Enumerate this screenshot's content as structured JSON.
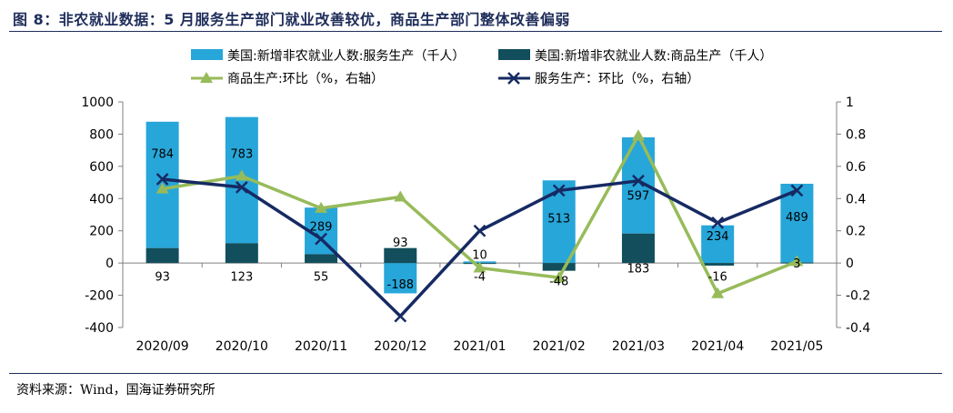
{
  "title": "图 8：非农就业数据：5 月服务生产部门就业改善较优，商品生产部门整体改善偏弱",
  "source": "资料来源：Wind，国海证券研究所",
  "colors": {
    "services_bar": "#27a6d9",
    "goods_bar": "#124e5c",
    "goods_line": "#97bb5a",
    "services_line": "#162a63",
    "title": "#1f2d5a"
  },
  "chart_data": {
    "type": "bar",
    "categories": [
      "2020/09",
      "2020/10",
      "2020/11",
      "2020/12",
      "2021/01",
      "2021/02",
      "2021/03",
      "2021/04",
      "2021/05"
    ],
    "series": [
      {
        "name": "美国:新增非农就业人数:服务生产（千人）",
        "kind": "bar",
        "axis": "left",
        "values": [
          784,
          783,
          289,
          -188,
          10,
          513,
          597,
          234,
          489
        ]
      },
      {
        "name": "美国:新增非农就业人数:商品生产（千人）",
        "kind": "bar",
        "axis": "left",
        "values": [
          93,
          123,
          55,
          93,
          -4,
          -48,
          183,
          -16,
          3
        ]
      },
      {
        "name": "商品生产:环比（%，右轴）",
        "kind": "line",
        "axis": "right",
        "marker": "triangle",
        "values": [
          0.46,
          0.54,
          0.34,
          0.41,
          -0.03,
          -0.09,
          0.79,
          -0.19,
          0.01
        ]
      },
      {
        "name": "服务生产：环比（%，右轴）",
        "kind": "line",
        "axis": "right",
        "marker": "x",
        "values": [
          0.52,
          0.47,
          0.15,
          -0.33,
          0.2,
          0.45,
          0.51,
          0.25,
          0.45
        ]
      }
    ],
    "ylim_left": [
      -400,
      1000
    ],
    "yticks_left": [
      "1000",
      "800",
      "600",
      "400",
      "200",
      "0",
      "-200",
      "-400"
    ],
    "ylim_right": [
      -0.4,
      1
    ],
    "yticks_right": [
      "1",
      "0.8",
      "0.6",
      "0.4",
      "0.2",
      "0",
      "-0.2",
      "-0.4"
    ],
    "legend_position": "top",
    "grid": false
  }
}
